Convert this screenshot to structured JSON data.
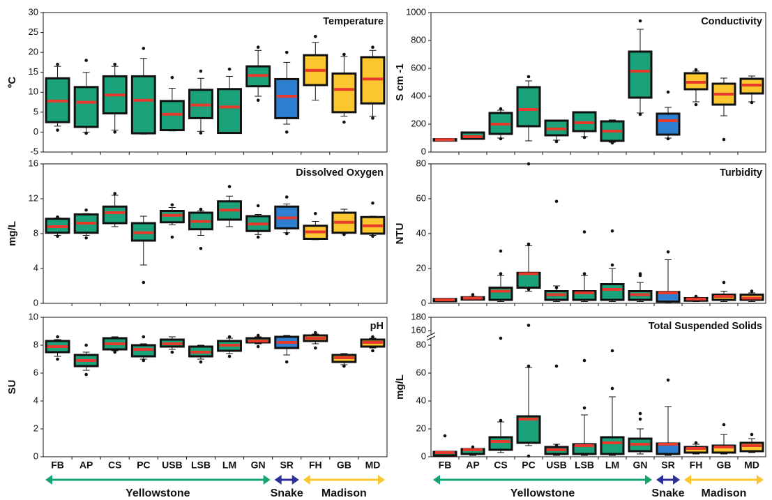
{
  "chart_data": {
    "type": "box",
    "categories": [
      "FB",
      "AP",
      "CS",
      "PC",
      "USB",
      "LSB",
      "LM",
      "GN",
      "SR",
      "FH",
      "GB",
      "MD"
    ],
    "colors": [
      "#1ca27a",
      "#1ca27a",
      "#1ca27a",
      "#1ca27a",
      "#1ca27a",
      "#1ca27a",
      "#1ca27a",
      "#1ca27a",
      "#2f7fd1",
      "#fcc72e",
      "#fcc72e",
      "#fcc72e"
    ],
    "label_colors": [
      "#16a36f",
      "#16a36f",
      "#16a36f",
      "#16a36f",
      "#16a36f",
      "#16a36f",
      "#16a36f",
      "#16a36f",
      "#2b2f9a",
      "#fcc72e",
      "#fcc72e",
      "#fcc72e"
    ],
    "median_color": "#e8392d",
    "groups": [
      {
        "name": "Yellowstone",
        "color": "#16a36f",
        "from": "FB",
        "to": "GN"
      },
      {
        "name": "Snake",
        "color": "#2b2f9a",
        "from": "SR",
        "to": "SR"
      },
      {
        "name": "Madison",
        "color": "#fcc72e",
        "from": "FH",
        "to": "MD"
      }
    ],
    "panels": [
      {
        "title": "Temperature",
        "ylabel": "ºC",
        "ylim": [
          -5,
          30
        ],
        "yticks": [
          -5,
          0,
          5,
          10,
          15,
          20,
          25,
          30
        ],
        "stats": [
          {
            "low": 1.5,
            "q1": 2.5,
            "median": 7.8,
            "q3": 13.5,
            "high": 16.5,
            "outliers": [
              0.5,
              17
            ]
          },
          {
            "low": 0,
            "q1": 1.3,
            "median": 7.5,
            "q3": 11.3,
            "high": 15,
            "outliers": [
              -0.3,
              18
            ]
          },
          {
            "low": 0.5,
            "q1": 4.7,
            "median": 9.3,
            "q3": 14,
            "high": 16.5,
            "outliers": [
              0,
              17
            ]
          },
          {
            "low": -0.5,
            "q1": -0.3,
            "median": 8,
            "q3": 14,
            "high": 18.5,
            "outliers": [
              21
            ]
          },
          {
            "low": 0.3,
            "q1": 0.5,
            "median": 4.5,
            "q3": 7.8,
            "high": 11,
            "outliers": [
              13.7
            ]
          },
          {
            "low": 0.2,
            "q1": 3.5,
            "median": 6.8,
            "q3": 10.6,
            "high": 13.5,
            "outliers": [
              -0.2,
              15.3
            ]
          },
          {
            "low": -0.3,
            "q1": -0.2,
            "median": 6.3,
            "q3": 10.8,
            "high": 14,
            "outliers": [
              15.8
            ]
          },
          {
            "low": 9,
            "q1": 11.5,
            "median": 14.2,
            "q3": 16.5,
            "high": 20.5,
            "outliers": [
              8,
              21.3
            ]
          },
          {
            "low": 2,
            "q1": 3.5,
            "median": 9,
            "q3": 13.3,
            "high": 17.5,
            "outliers": [
              0,
              20
            ]
          },
          {
            "low": 8,
            "q1": 11.8,
            "median": 15.5,
            "q3": 19.3,
            "high": 22.5,
            "outliers": [
              24
            ]
          },
          {
            "low": 4,
            "q1": 5,
            "median": 10.7,
            "q3": 14.7,
            "high": 19,
            "outliers": [
              2.5,
              19.5
            ]
          },
          {
            "low": 4,
            "q1": 7.2,
            "median": 13.3,
            "q3": 18.8,
            "high": 20.5,
            "outliers": [
              3.5,
              21.3
            ]
          }
        ]
      },
      {
        "title": "Conductivity",
        "ylabel": "S cm -1",
        "ylim": [
          0,
          1000
        ],
        "yticks": [
          0,
          200,
          400,
          600,
          800,
          1000
        ],
        "stats": [
          {
            "low": 80,
            "q1": 85,
            "median": 88,
            "q3": 92,
            "high": 95,
            "outliers": []
          },
          {
            "low": 90,
            "q1": 95,
            "median": 110,
            "q3": 140,
            "high": 145,
            "outliers": []
          },
          {
            "low": 100,
            "q1": 130,
            "median": 200,
            "q3": 280,
            "high": 300,
            "outliers": [
              95,
              310
            ]
          },
          {
            "low": 80,
            "q1": 185,
            "median": 305,
            "q3": 465,
            "high": 510,
            "outliers": [
              540
            ]
          },
          {
            "low": 85,
            "q1": 120,
            "median": 165,
            "q3": 225,
            "high": 230,
            "outliers": [
              75
            ]
          },
          {
            "low": 110,
            "q1": 150,
            "median": 210,
            "q3": 285,
            "high": 290,
            "outliers": [
              105
            ]
          },
          {
            "low": 70,
            "q1": 80,
            "median": 150,
            "q3": 220,
            "high": 230,
            "outliers": [
              65
            ]
          },
          {
            "low": 280,
            "q1": 390,
            "median": 580,
            "q3": 720,
            "high": 880,
            "outliers": [
              940,
              270
            ]
          },
          {
            "low": 100,
            "q1": 125,
            "median": 225,
            "q3": 275,
            "high": 320,
            "outliers": [
              430,
              95
            ]
          },
          {
            "low": 360,
            "q1": 450,
            "median": 500,
            "q3": 565,
            "high": 580,
            "outliers": [
              340,
              590
            ]
          },
          {
            "low": 260,
            "q1": 340,
            "median": 415,
            "q3": 490,
            "high": 530,
            "outliers": [
              90
            ]
          },
          {
            "low": 360,
            "q1": 420,
            "median": 480,
            "q3": 525,
            "high": 545,
            "outliers": [
              355
            ]
          }
        ]
      },
      {
        "title": "Dissolved Oxygen",
        "ylabel": "mg/L",
        "ylim": [
          0,
          16
        ],
        "yticks": [
          0,
          4,
          8,
          12,
          16
        ],
        "stats": [
          {
            "low": 7.8,
            "q1": 8.1,
            "median": 8.8,
            "q3": 9.7,
            "high": 9.8,
            "outliers": [
              7.7,
              9.9
            ]
          },
          {
            "low": 7.8,
            "q1": 8.1,
            "median": 9.2,
            "q3": 10.2,
            "high": 10.3,
            "outliers": [
              7.5,
              10.7
            ]
          },
          {
            "low": 8.8,
            "q1": 9.2,
            "median": 10.4,
            "q3": 11.1,
            "high": 12.4,
            "outliers": [
              12.6
            ]
          },
          {
            "low": 4.4,
            "q1": 7.2,
            "median": 8.1,
            "q3": 9.2,
            "high": 10,
            "outliers": [
              2.4
            ]
          },
          {
            "low": 9,
            "q1": 9.3,
            "median": 10.1,
            "q3": 10.6,
            "high": 11,
            "outliers": [
              7.6,
              11.3
            ]
          },
          {
            "low": 7.8,
            "q1": 8.5,
            "median": 9.4,
            "q3": 10.4,
            "high": 10.6,
            "outliers": [
              6.3,
              10.8
            ]
          },
          {
            "low": 8.8,
            "q1": 9.6,
            "median": 10.7,
            "q3": 11.7,
            "high": 12.3,
            "outliers": [
              13.4
            ]
          },
          {
            "low": 7.9,
            "q1": 8.3,
            "median": 9.1,
            "q3": 10,
            "high": 10.2,
            "outliers": [
              7.6,
              11.2
            ]
          },
          {
            "low": 8.1,
            "q1": 8.6,
            "median": 9.8,
            "q3": 11.1,
            "high": 11.4,
            "outliers": [
              12.2,
              8
            ]
          },
          {
            "low": 7.3,
            "q1": 7.4,
            "median": 8.2,
            "q3": 8.9,
            "high": 9.4,
            "outliers": [
              10.3
            ]
          },
          {
            "low": 8,
            "q1": 8.1,
            "median": 9.3,
            "q3": 10.4,
            "high": 10.8,
            "outliers": [
              7.9
            ]
          },
          {
            "low": 7.8,
            "q1": 8,
            "median": 8.9,
            "q3": 9.9,
            "high": 10,
            "outliers": [
              7.7,
              11.5
            ]
          }
        ]
      },
      {
        "title": "Turbidity",
        "ylabel": "NTU",
        "ylim": [
          0,
          80
        ],
        "yticks": [
          0,
          20,
          40,
          60,
          80
        ],
        "stats": [
          {
            "low": 1,
            "q1": 1.2,
            "median": 2,
            "q3": 2.5,
            "high": 2.7,
            "outliers": []
          },
          {
            "low": 2,
            "q1": 2.2,
            "median": 3,
            "q3": 3.5,
            "high": 4,
            "outliers": [
              5
            ]
          },
          {
            "low": 1,
            "q1": 2,
            "median": 7,
            "q3": 9,
            "high": 16,
            "outliers": [
              30,
              17
            ]
          },
          {
            "low": 7,
            "q1": 9,
            "median": 17,
            "q3": 17.5,
            "high": 33,
            "outliers": [
              80,
              34,
              8
            ]
          },
          {
            "low": 1,
            "q1": 2,
            "median": 5,
            "q3": 7,
            "high": 10,
            "outliers": [
              58.5,
              9
            ]
          },
          {
            "low": 1,
            "q1": 2,
            "median": 6,
            "q3": 7,
            "high": 16,
            "outliers": [
              41,
              17
            ]
          },
          {
            "low": 1,
            "q1": 2,
            "median": 8,
            "q3": 11,
            "high": 20,
            "outliers": [
              41.5,
              22
            ]
          },
          {
            "low": 1,
            "q1": 2,
            "median": 5,
            "q3": 7,
            "high": 12,
            "outliers": [
              17,
              16
            ]
          },
          {
            "low": 0.5,
            "q1": 1,
            "median": 6,
            "q3": 6.5,
            "high": 25,
            "outliers": [
              29.5
            ]
          },
          {
            "low": 1,
            "q1": 1.5,
            "median": 2.5,
            "q3": 3,
            "high": 3.5,
            "outliers": [
              4
            ]
          },
          {
            "low": 1,
            "q1": 2,
            "median": 4,
            "q3": 5,
            "high": 7,
            "outliers": [
              12
            ]
          },
          {
            "low": 1,
            "q1": 2,
            "median": 3,
            "q3": 5,
            "high": 6,
            "outliers": [
              7
            ]
          }
        ]
      },
      {
        "title": "pH",
        "ylabel": "SU",
        "ylim": [
          0,
          10
        ],
        "yticks": [
          0,
          2,
          4,
          6,
          8,
          10
        ],
        "stats": [
          {
            "low": 7.2,
            "q1": 7.5,
            "median": 7.9,
            "q3": 8.3,
            "high": 8.4,
            "outliers": [
              7,
              8.6
            ]
          },
          {
            "low": 6.2,
            "q1": 6.5,
            "median": 6.9,
            "q3": 7.3,
            "high": 7.5,
            "outliers": [
              5.9,
              8
            ]
          },
          {
            "low": 7.6,
            "q1": 7.7,
            "median": 8.1,
            "q3": 8.5,
            "high": 8.6,
            "outliers": [
              7.5
            ]
          },
          {
            "low": 7,
            "q1": 7.2,
            "median": 7.7,
            "q3": 8,
            "high": 8.1,
            "outliers": [
              6.9,
              8.6
            ]
          },
          {
            "low": 7.7,
            "q1": 7.9,
            "median": 8.1,
            "q3": 8.4,
            "high": 8.6,
            "outliers": [
              7.5
            ]
          },
          {
            "low": 7,
            "q1": 7.2,
            "median": 7.5,
            "q3": 7.9,
            "high": 8,
            "outliers": [
              6.8
            ]
          },
          {
            "low": 7.4,
            "q1": 7.6,
            "median": 8,
            "q3": 8.3,
            "high": 8.5,
            "outliers": [
              7.2,
              8.6
            ]
          },
          {
            "low": 8.1,
            "q1": 8.2,
            "median": 8.3,
            "q3": 8.5,
            "high": 8.6,
            "outliers": [
              7.9,
              8.7
            ]
          },
          {
            "low": 7.3,
            "q1": 7.8,
            "median": 8.2,
            "q3": 8.6,
            "high": 8.7,
            "outliers": [
              6.8
            ]
          },
          {
            "low": 8.1,
            "q1": 8.3,
            "median": 8.5,
            "q3": 8.7,
            "high": 8.8,
            "outliers": [
              7.8,
              8.9
            ]
          },
          {
            "low": 6.6,
            "q1": 6.8,
            "median": 7.1,
            "q3": 7.3,
            "high": 7.4,
            "outliers": [
              6.5
            ]
          },
          {
            "low": 7.8,
            "q1": 7.9,
            "median": 8.2,
            "q3": 8.4,
            "high": 8.5,
            "outliers": [
              7.6,
              8.6
            ]
          }
        ]
      },
      {
        "title": "Total Suspended Solids",
        "ylabel": "mg/L",
        "ylim": [
          0,
          180
        ],
        "ybreak": [
          85,
          155
        ],
        "yticks": [
          0,
          20,
          40,
          60,
          80,
          160,
          180
        ],
        "stats": [
          {
            "low": 0.5,
            "q1": 1,
            "median": 3,
            "q3": 3.5,
            "high": 4,
            "outliers": [
              15
            ]
          },
          {
            "low": 1,
            "q1": 2,
            "median": 5,
            "q3": 5.5,
            "high": 6,
            "outliers": [
              7
            ]
          },
          {
            "low": 3,
            "q1": 5,
            "median": 11,
            "q3": 14,
            "high": 25,
            "outliers": [
              85,
              26
            ]
          },
          {
            "low": 8,
            "q1": 10,
            "median": 27,
            "q3": 29,
            "high": 64,
            "outliers": [
              168,
              65,
              0.5
            ]
          },
          {
            "low": 1,
            "q1": 2,
            "median": 5,
            "q3": 7,
            "high": 9,
            "outliers": [
              65,
              8
            ]
          },
          {
            "low": 1,
            "q1": 2,
            "median": 8,
            "q3": 9,
            "high": 30,
            "outliers": [
              69,
              35
            ]
          },
          {
            "low": 1,
            "q1": 2,
            "median": 10,
            "q3": 14,
            "high": 43,
            "outliers": [
              76,
              49
            ]
          },
          {
            "low": 2,
            "q1": 4,
            "median": 9,
            "q3": 13,
            "high": 20,
            "outliers": [
              31,
              27
            ]
          },
          {
            "low": 1,
            "q1": 2,
            "median": 9,
            "q3": 9.5,
            "high": 36,
            "outliers": [
              55
            ]
          },
          {
            "low": 2,
            "q1": 3,
            "median": 6,
            "q3": 7,
            "high": 9,
            "outliers": [
              10
            ]
          },
          {
            "low": 2,
            "q1": 3,
            "median": 7,
            "q3": 8,
            "high": 16,
            "outliers": [
              23
            ]
          },
          {
            "low": 3,
            "q1": 4,
            "median": 8,
            "q3": 10,
            "high": 13,
            "outliers": [
              16
            ]
          }
        ]
      }
    ]
  }
}
